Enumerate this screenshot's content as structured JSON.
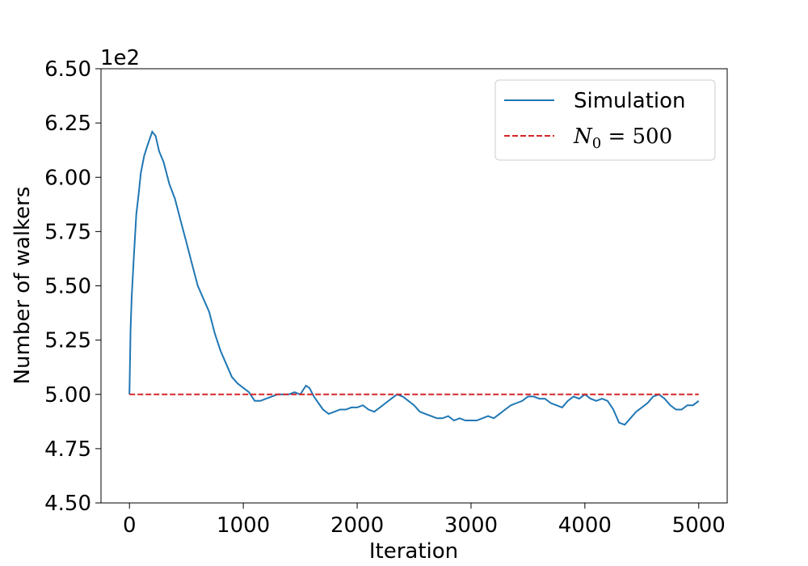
{
  "chart_data": {
    "type": "line",
    "title": "",
    "xlabel": "Iteration",
    "ylabel": "Number of walkers",
    "offset_text": "1e2",
    "xlim": [
      -250,
      5250
    ],
    "ylim": [
      4.5,
      6.5
    ],
    "xticks": [
      0,
      1000,
      2000,
      3000,
      4000,
      5000
    ],
    "xtick_labels": [
      "0",
      "1000",
      "2000",
      "3000",
      "4000",
      "5000"
    ],
    "yticks": [
      4.5,
      4.75,
      5.0,
      5.25,
      5.5,
      5.75,
      6.0,
      6.25,
      6.5
    ],
    "ytick_labels": [
      "4.50",
      "4.75",
      "5.00",
      "5.25",
      "5.50",
      "5.75",
      "6.00",
      "6.25",
      "6.50"
    ],
    "grid": false,
    "legend_position": "top-right",
    "series": [
      {
        "name": "Simulation",
        "color": "#1f77b4",
        "style": "solid",
        "x": [
          0,
          10,
          20,
          40,
          60,
          80,
          100,
          130,
          160,
          200,
          230,
          260,
          300,
          350,
          400,
          450,
          500,
          550,
          600,
          650,
          700,
          750,
          800,
          850,
          900,
          950,
          1000,
          1050,
          1100,
          1150,
          1200,
          1250,
          1300,
          1350,
          1400,
          1450,
          1500,
          1550,
          1580,
          1620,
          1660,
          1700,
          1750,
          1800,
          1850,
          1900,
          1950,
          2000,
          2050,
          2100,
          2150,
          2200,
          2250,
          2300,
          2350,
          2400,
          2450,
          2500,
          2550,
          2600,
          2650,
          2700,
          2750,
          2800,
          2850,
          2900,
          2950,
          3000,
          3050,
          3100,
          3150,
          3200,
          3250,
          3300,
          3350,
          3400,
          3450,
          3500,
          3550,
          3600,
          3650,
          3700,
          3750,
          3800,
          3850,
          3900,
          3950,
          4000,
          4050,
          4100,
          4150,
          4200,
          4250,
          4300,
          4350,
          4400,
          4450,
          4500,
          4550,
          4600,
          4650,
          4700,
          4750,
          4800,
          4850,
          4900,
          4950,
          5000
        ],
        "y": [
          5.0,
          5.3,
          5.45,
          5.65,
          5.83,
          5.92,
          6.02,
          6.1,
          6.15,
          6.21,
          6.19,
          6.12,
          6.07,
          5.97,
          5.9,
          5.8,
          5.7,
          5.6,
          5.5,
          5.44,
          5.38,
          5.28,
          5.2,
          5.14,
          5.08,
          5.05,
          5.03,
          5.01,
          4.97,
          4.97,
          4.98,
          4.99,
          5.0,
          5.0,
          5.0,
          5.01,
          5.0,
          5.04,
          5.03,
          4.99,
          4.96,
          4.93,
          4.91,
          4.92,
          4.93,
          4.93,
          4.94,
          4.94,
          4.95,
          4.93,
          4.92,
          4.94,
          4.96,
          4.98,
          5.0,
          4.99,
          4.97,
          4.95,
          4.92,
          4.91,
          4.9,
          4.89,
          4.89,
          4.9,
          4.88,
          4.89,
          4.88,
          4.88,
          4.88,
          4.89,
          4.9,
          4.89,
          4.91,
          4.93,
          4.95,
          4.96,
          4.97,
          4.99,
          4.99,
          4.98,
          4.98,
          4.96,
          4.95,
          4.94,
          4.97,
          4.99,
          4.98,
          5.0,
          4.98,
          4.97,
          4.98,
          4.97,
          4.93,
          4.87,
          4.86,
          4.89,
          4.92,
          4.94,
          4.96,
          4.99,
          5.0,
          4.98,
          4.95,
          4.93,
          4.93,
          4.95,
          4.95,
          4.97
        ]
      },
      {
        "name": "N₀ = 500",
        "legend_prefix": "N",
        "legend_subscript": "0",
        "legend_suffix": " = 500",
        "color": "#d62728",
        "style": "dashed",
        "x": [
          0,
          5000
        ],
        "y": [
          5.0,
          5.0
        ]
      }
    ]
  }
}
